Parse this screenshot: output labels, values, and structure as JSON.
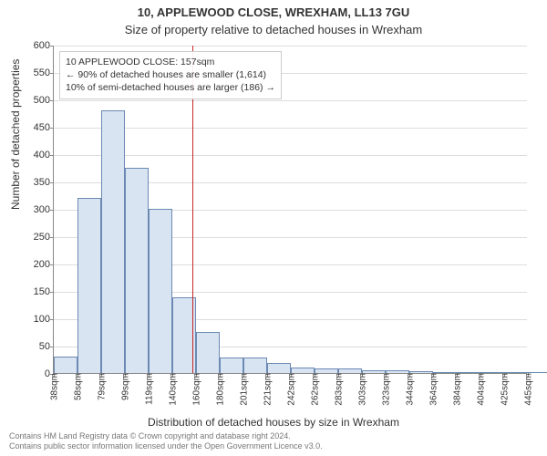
{
  "title": "10, APPLEWOOD CLOSE, WREXHAM, LL13 7GU",
  "subtitle": "Size of property relative to detached houses in Wrexham",
  "y_axis_label": "Number of detached properties",
  "x_axis_label": "Distribution of detached houses by size in Wrexham",
  "footer_line1": "Contains HM Land Registry data © Crown copyright and database right 2024.",
  "footer_line2": "Contains public sector information licensed under the Open Government Licence v3.0.",
  "annotation": {
    "line1": "10 APPLEWOOD CLOSE: 157sqm",
    "line2": "← 90% of detached houses are smaller (1,614)",
    "line3": "10% of semi-detached houses are larger (186) →"
  },
  "chart": {
    "type": "histogram",
    "ylim": [
      0,
      600
    ],
    "ytick_step": 50,
    "x_start": 38,
    "x_bin_width": 20.3,
    "x_tick_labels": [
      "38sqm",
      "58sqm",
      "79sqm",
      "99sqm",
      "119sqm",
      "140sqm",
      "160sqm",
      "180sqm",
      "201sqm",
      "221sqm",
      "242sqm",
      "262sqm",
      "283sqm",
      "303sqm",
      "323sqm",
      "344sqm",
      "364sqm",
      "384sqm",
      "404sqm",
      "425sqm",
      "445sqm"
    ],
    "bar_values": [
      30,
      320,
      480,
      375,
      300,
      138,
      75,
      28,
      28,
      18,
      10,
      8,
      8,
      5,
      5,
      3,
      0,
      2,
      2,
      2,
      2
    ],
    "bar_fill": "#d9e4f2",
    "bar_stroke": "#6b89b3",
    "background_color": "#ffffff",
    "grid_color": "#dddddd",
    "axis_color": "#888888",
    "marker_x_value": 157,
    "marker_color": "#c62828",
    "marker_width": 1
  }
}
